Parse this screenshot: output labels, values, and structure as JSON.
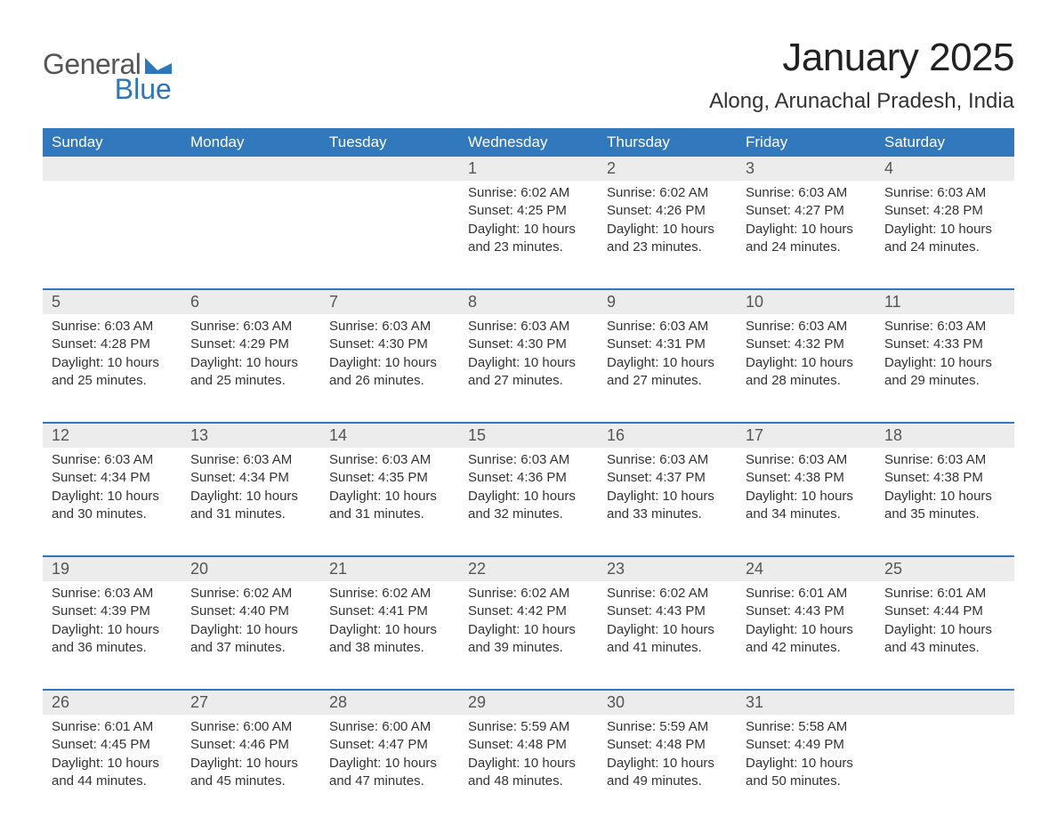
{
  "logo": {
    "text_general": "General",
    "text_blue": "Blue",
    "mark_color": "#2d76b8"
  },
  "header": {
    "month_title": "January 2025",
    "location": "Along, Arunachal Pradesh, India"
  },
  "colors": {
    "header_bg": "#3278bc",
    "header_text": "#ffffff",
    "daynum_bg": "#ececec",
    "daynum_text": "#555555",
    "body_text": "#333333",
    "week_border": "#3278bc",
    "page_bg": "#ffffff"
  },
  "typography": {
    "month_title_fontsize": 44,
    "location_fontsize": 24,
    "weekday_fontsize": 17,
    "daynum_fontsize": 18,
    "body_fontsize": 15
  },
  "calendar": {
    "type": "table",
    "weekdays": [
      "Sunday",
      "Monday",
      "Tuesday",
      "Wednesday",
      "Thursday",
      "Friday",
      "Saturday"
    ],
    "weeks": [
      [
        null,
        null,
        null,
        {
          "n": "1",
          "sunrise": "6:02 AM",
          "sunset": "4:25 PM",
          "daylight": "10 hours and 23 minutes."
        },
        {
          "n": "2",
          "sunrise": "6:02 AM",
          "sunset": "4:26 PM",
          "daylight": "10 hours and 23 minutes."
        },
        {
          "n": "3",
          "sunrise": "6:03 AM",
          "sunset": "4:27 PM",
          "daylight": "10 hours and 24 minutes."
        },
        {
          "n": "4",
          "sunrise": "6:03 AM",
          "sunset": "4:28 PM",
          "daylight": "10 hours and 24 minutes."
        }
      ],
      [
        {
          "n": "5",
          "sunrise": "6:03 AM",
          "sunset": "4:28 PM",
          "daylight": "10 hours and 25 minutes."
        },
        {
          "n": "6",
          "sunrise": "6:03 AM",
          "sunset": "4:29 PM",
          "daylight": "10 hours and 25 minutes."
        },
        {
          "n": "7",
          "sunrise": "6:03 AM",
          "sunset": "4:30 PM",
          "daylight": "10 hours and 26 minutes."
        },
        {
          "n": "8",
          "sunrise": "6:03 AM",
          "sunset": "4:30 PM",
          "daylight": "10 hours and 27 minutes."
        },
        {
          "n": "9",
          "sunrise": "6:03 AM",
          "sunset": "4:31 PM",
          "daylight": "10 hours and 27 minutes."
        },
        {
          "n": "10",
          "sunrise": "6:03 AM",
          "sunset": "4:32 PM",
          "daylight": "10 hours and 28 minutes."
        },
        {
          "n": "11",
          "sunrise": "6:03 AM",
          "sunset": "4:33 PM",
          "daylight": "10 hours and 29 minutes."
        }
      ],
      [
        {
          "n": "12",
          "sunrise": "6:03 AM",
          "sunset": "4:34 PM",
          "daylight": "10 hours and 30 minutes."
        },
        {
          "n": "13",
          "sunrise": "6:03 AM",
          "sunset": "4:34 PM",
          "daylight": "10 hours and 31 minutes."
        },
        {
          "n": "14",
          "sunrise": "6:03 AM",
          "sunset": "4:35 PM",
          "daylight": "10 hours and 31 minutes."
        },
        {
          "n": "15",
          "sunrise": "6:03 AM",
          "sunset": "4:36 PM",
          "daylight": "10 hours and 32 minutes."
        },
        {
          "n": "16",
          "sunrise": "6:03 AM",
          "sunset": "4:37 PM",
          "daylight": "10 hours and 33 minutes."
        },
        {
          "n": "17",
          "sunrise": "6:03 AM",
          "sunset": "4:38 PM",
          "daylight": "10 hours and 34 minutes."
        },
        {
          "n": "18",
          "sunrise": "6:03 AM",
          "sunset": "4:38 PM",
          "daylight": "10 hours and 35 minutes."
        }
      ],
      [
        {
          "n": "19",
          "sunrise": "6:03 AM",
          "sunset": "4:39 PM",
          "daylight": "10 hours and 36 minutes."
        },
        {
          "n": "20",
          "sunrise": "6:02 AM",
          "sunset": "4:40 PM",
          "daylight": "10 hours and 37 minutes."
        },
        {
          "n": "21",
          "sunrise": "6:02 AM",
          "sunset": "4:41 PM",
          "daylight": "10 hours and 38 minutes."
        },
        {
          "n": "22",
          "sunrise": "6:02 AM",
          "sunset": "4:42 PM",
          "daylight": "10 hours and 39 minutes."
        },
        {
          "n": "23",
          "sunrise": "6:02 AM",
          "sunset": "4:43 PM",
          "daylight": "10 hours and 41 minutes."
        },
        {
          "n": "24",
          "sunrise": "6:01 AM",
          "sunset": "4:43 PM",
          "daylight": "10 hours and 42 minutes."
        },
        {
          "n": "25",
          "sunrise": "6:01 AM",
          "sunset": "4:44 PM",
          "daylight": "10 hours and 43 minutes."
        }
      ],
      [
        {
          "n": "26",
          "sunrise": "6:01 AM",
          "sunset": "4:45 PM",
          "daylight": "10 hours and 44 minutes."
        },
        {
          "n": "27",
          "sunrise": "6:00 AM",
          "sunset": "4:46 PM",
          "daylight": "10 hours and 45 minutes."
        },
        {
          "n": "28",
          "sunrise": "6:00 AM",
          "sunset": "4:47 PM",
          "daylight": "10 hours and 47 minutes."
        },
        {
          "n": "29",
          "sunrise": "5:59 AM",
          "sunset": "4:48 PM",
          "daylight": "10 hours and 48 minutes."
        },
        {
          "n": "30",
          "sunrise": "5:59 AM",
          "sunset": "4:48 PM",
          "daylight": "10 hours and 49 minutes."
        },
        {
          "n": "31",
          "sunrise": "5:58 AM",
          "sunset": "4:49 PM",
          "daylight": "10 hours and 50 minutes."
        },
        null
      ]
    ],
    "labels": {
      "sunrise_prefix": "Sunrise: ",
      "sunset_prefix": "Sunset: ",
      "daylight_prefix": "Daylight: "
    }
  }
}
